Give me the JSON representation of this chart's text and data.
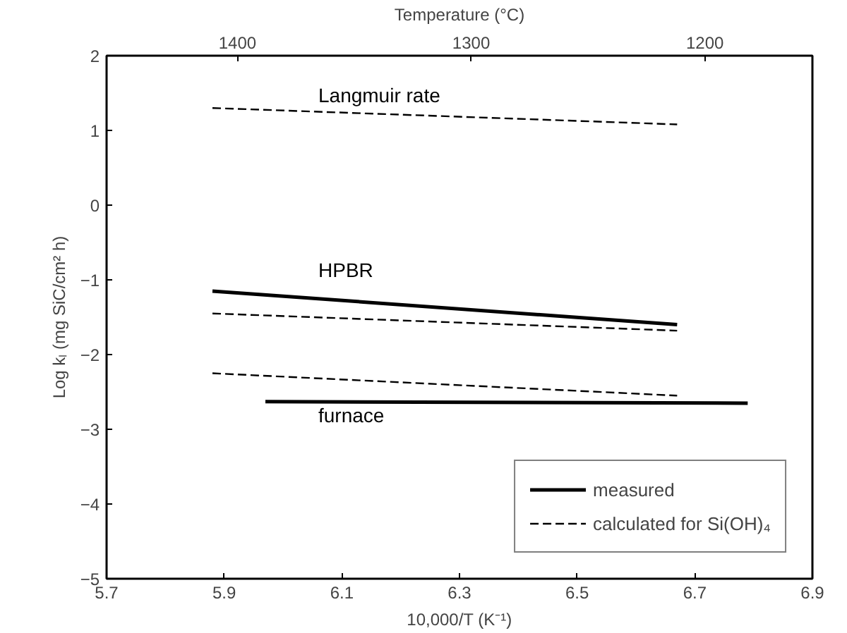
{
  "chart_data": {
    "type": "line",
    "xlabel": "10,000/T (K⁻¹)",
    "ylabel": "Log kₗ (mg SiC/cm² h)",
    "x2label": "Temperature (°C)",
    "xlim": [
      5.7,
      6.9
    ],
    "xticks": [
      5.7,
      5.9,
      6.1,
      6.3,
      6.5,
      6.7,
      6.9
    ],
    "ylim": [
      -5,
      2
    ],
    "yticks": [
      -5,
      -4,
      -3,
      -2,
      -1,
      0,
      1,
      2
    ],
    "x2lim": [
      1456,
      1154
    ],
    "x2ticks": [
      1400,
      1300,
      1200
    ],
    "grid": false,
    "legend": "bottom right",
    "marker": "none",
    "series": [
      {
        "color": "#000000",
        "line_style": "dashed",
        "x": [
          5.88,
          6.67
        ],
        "values": [
          1.3,
          1.08
        ]
      },
      {
        "name": "measured",
        "color": "#000000",
        "line_style": "solid",
        "x": [
          5.88,
          6.67
        ],
        "values": [
          -1.15,
          -1.6
        ]
      },
      {
        "name": "calculated for Si(OH)₄",
        "color": "#000000",
        "line_style": "dashed",
        "x": [
          5.88,
          6.67
        ],
        "values": [
          -1.45,
          -1.68
        ]
      },
      {
        "color": "#000000",
        "line_style": "dashed",
        "x": [
          5.88,
          6.67
        ],
        "values": [
          -2.25,
          -2.55
        ]
      },
      {
        "color": "#000000",
        "line_style": "solid",
        "x": [
          5.97,
          6.79
        ],
        "values": [
          -2.63,
          -2.65
        ]
      }
    ],
    "annotations": [
      "Langmuir rate",
      "HPBR",
      "furnace"
    ]
  }
}
